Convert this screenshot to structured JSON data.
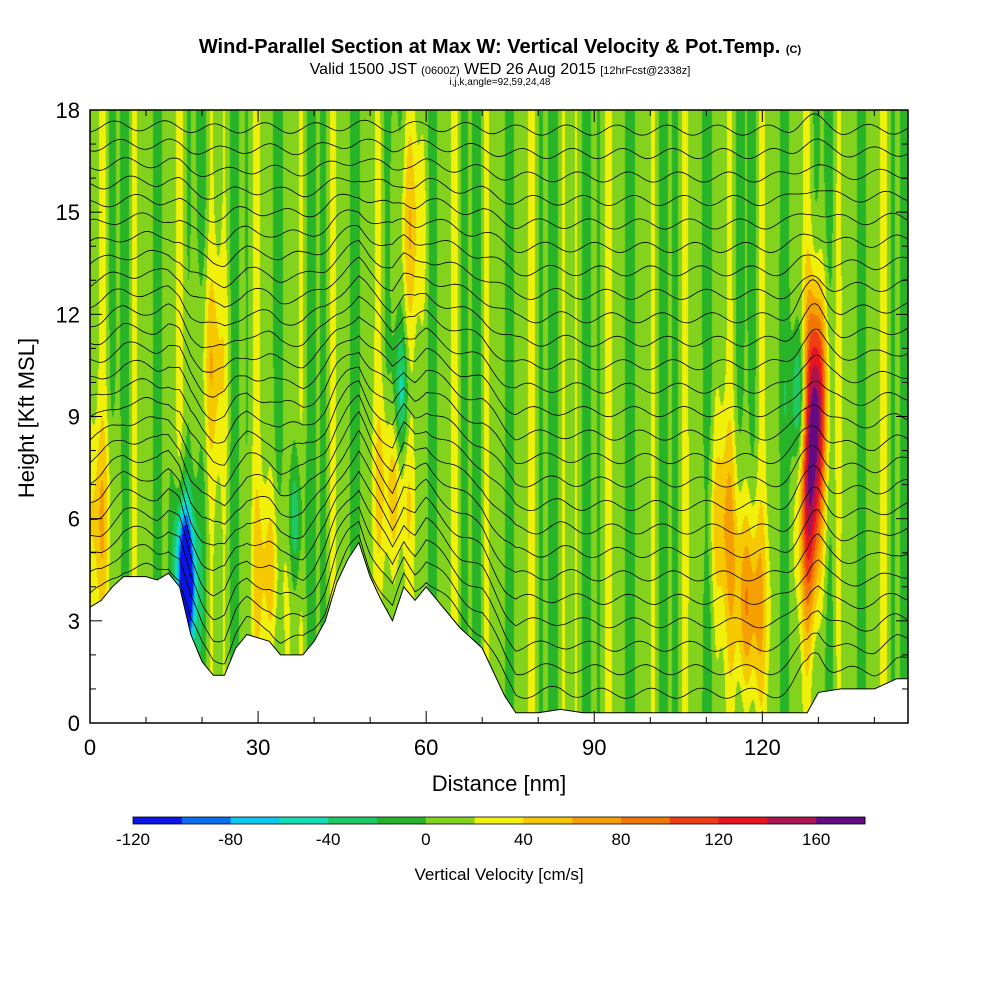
{
  "title": {
    "main": "Wind-Parallel Section at Max W: Vertical Velocity & Pot.Temp.",
    "copyright": "(C)",
    "valid": "Valid 1500 JST",
    "utc": "(0600Z)",
    "date": "WED 26 Aug 2015",
    "fcst": "[12hrFcst@2338z]",
    "indices": "i,j,k,angle=92,59,24,48"
  },
  "chart_data": {
    "type": "heatmap",
    "xlabel": "Distance [nm]",
    "ylabel": "Height [Kft MSL]",
    "xlim": [
      0,
      146
    ],
    "ylim": [
      0,
      18
    ],
    "x_ticks": [
      0,
      30,
      60,
      90,
      120
    ],
    "y_ticks": [
      0,
      3,
      6,
      9,
      12,
      15,
      18
    ],
    "colorbar": {
      "label": "Vertical Velocity [cm/s]",
      "levels": [
        -120,
        -100,
        -80,
        -60,
        -40,
        -20,
        0,
        20,
        40,
        60,
        80,
        100,
        120,
        140,
        160,
        180
      ],
      "ticks": [
        -120,
        -80,
        -40,
        0,
        40,
        80,
        120,
        160
      ],
      "colors": [
        "#0a14e6",
        "#0a6cf0",
        "#0ac8f0",
        "#14dcb4",
        "#1ec864",
        "#28b428",
        "#82d21e",
        "#f0f00a",
        "#f5c800",
        "#f5a000",
        "#f07800",
        "#f03c14",
        "#e6141e",
        "#aa1450",
        "#640a82"
      ]
    },
    "terrain_kft": [
      [
        0,
        3.4
      ],
      [
        2,
        3.6
      ],
      [
        4,
        4.0
      ],
      [
        6,
        4.3
      ],
      [
        10,
        4.3
      ],
      [
        12,
        4.2
      ],
      [
        14,
        4.4
      ],
      [
        16,
        4.0
      ],
      [
        18,
        2.6
      ],
      [
        20,
        1.8
      ],
      [
        22,
        1.4
      ],
      [
        24,
        1.4
      ],
      [
        26,
        2.2
      ],
      [
        28,
        2.6
      ],
      [
        32,
        2.4
      ],
      [
        34,
        2.0
      ],
      [
        38,
        2.0
      ],
      [
        40,
        2.4
      ],
      [
        42,
        3.0
      ],
      [
        44,
        4.1
      ],
      [
        46,
        4.8
      ],
      [
        48,
        5.3
      ],
      [
        50,
        4.3
      ],
      [
        52,
        3.6
      ],
      [
        54,
        3.0
      ],
      [
        56,
        4.0
      ],
      [
        58,
        3.6
      ],
      [
        60,
        4.0
      ],
      [
        62,
        3.6
      ],
      [
        64,
        3.2
      ],
      [
        66,
        2.8
      ],
      [
        70,
        2.2
      ],
      [
        72,
        1.5
      ],
      [
        74,
        0.8
      ],
      [
        76,
        0.3
      ],
      [
        80,
        0.3
      ],
      [
        84,
        0.4
      ],
      [
        88,
        0.3
      ],
      [
        100,
        0.3
      ],
      [
        106,
        0.3
      ],
      [
        110,
        0.3
      ],
      [
        120,
        0.3
      ],
      [
        128,
        0.3
      ],
      [
        130,
        0.9
      ],
      [
        134,
        1.0
      ],
      [
        140,
        1.0
      ],
      [
        144,
        1.3
      ],
      [
        146,
        1.3
      ]
    ],
    "updraft_cores": [
      {
        "x": 129.5,
        "z": 9.5,
        "w": 150
      },
      {
        "x": 128.5,
        "z": 6.0,
        "w": 100
      },
      {
        "x": 117.5,
        "z": 3.5,
        "w": 80
      },
      {
        "x": 54.0,
        "z": 7.0,
        "w": 55
      },
      {
        "x": 32.0,
        "z": 4.5,
        "w": 45
      },
      {
        "x": 21.5,
        "z": 10.5,
        "w": 40
      },
      {
        "x": 57.0,
        "z": 14.5,
        "w": 35
      },
      {
        "x": 113.0,
        "z": 6.0,
        "w": 45
      },
      {
        "x": 1.5,
        "z": 6.0,
        "w": 40
      }
    ],
    "downdraft_cores": [
      {
        "x": 16.5,
        "z": 4.8,
        "w": -110
      },
      {
        "x": 17.5,
        "z": 3.8,
        "w": -95
      },
      {
        "x": 126.5,
        "z": 9.5,
        "w": -60
      },
      {
        "x": 55.5,
        "z": 9.5,
        "w": -55
      },
      {
        "x": 36.5,
        "z": 6.0,
        "w": -45
      }
    ],
    "theta_contours_kft": [
      0.6,
      1.3,
      2.0,
      2.7,
      3.4,
      4.1,
      4.8,
      5.5,
      6.2,
      6.9,
      7.6,
      8.3,
      9.0,
      9.7,
      10.4,
      11.1,
      11.8,
      12.5,
      13.2,
      13.9,
      14.6,
      15.3,
      16.0,
      16.7,
      17.4
    ]
  }
}
